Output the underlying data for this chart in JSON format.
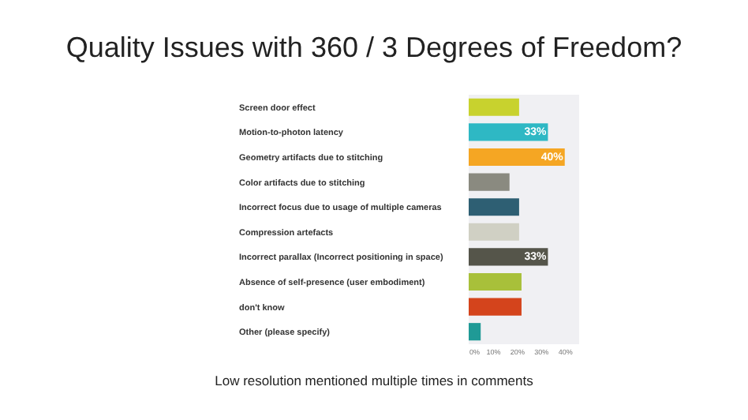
{
  "chart_data": {
    "type": "bar",
    "orientation": "horizontal",
    "title": "Quality Issues with 360 / 3 Degrees of Freedom?",
    "categories": [
      "Screen door effect",
      "Motion-to-photon latency",
      "Geometry artifacts due to stitching",
      "Color artifacts due to stitching",
      "Incorrect focus due to usage of multiple cameras",
      "Compression artefacts",
      "Incorrect parallax (Incorrect positioning in space)",
      "Absence of self-presence (user embodiment)",
      "don't know",
      "Other (please specify)"
    ],
    "values": [
      21,
      33,
      40,
      17,
      21,
      21,
      33,
      22,
      22,
      5
    ],
    "colors": [
      "#c8d22e",
      "#2eb8c4",
      "#f5a623",
      "#8a8a80",
      "#2e5f73",
      "#d0d0c4",
      "#55554a",
      "#a8c03a",
      "#d4441c",
      "#1f9a96"
    ],
    "value_labels": [
      null,
      "33%",
      "40%",
      null,
      null,
      null,
      "33%",
      null,
      null,
      null
    ],
    "xlim": [
      0,
      46
    ],
    "xticks": [
      {
        "value": 0,
        "label": "0%"
      },
      {
        "value": 10,
        "label": "10%"
      },
      {
        "value": 20,
        "label": "20%"
      },
      {
        "value": 30,
        "label": "30%"
      },
      {
        "value": 40,
        "label": "40%"
      }
    ],
    "annotations": [
      "Low resolution mentioned multiple times in comments"
    ]
  }
}
